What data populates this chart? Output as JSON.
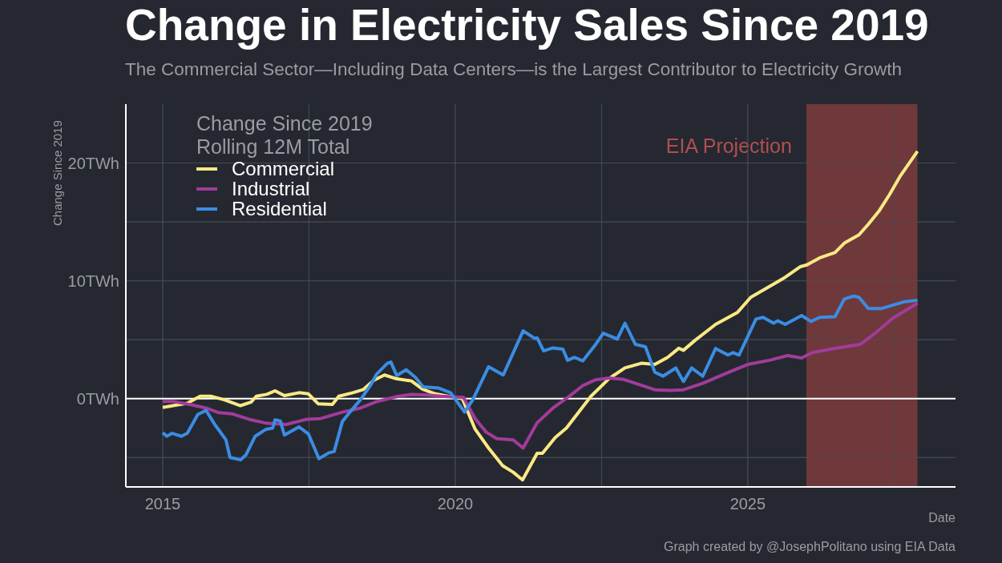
{
  "chart_data": {
    "type": "line",
    "title": "Change in Electricity Sales Since 2019",
    "subtitle": "The Commercial Sector—Including Data Centers—is the Largest Contributor to Electricity Growth",
    "xlabel": "Date",
    "ylabel": "Change Since 2019",
    "legend_title": "Change Since 2019\nRolling 12M Total",
    "legend": "top left",
    "grid": true,
    "xlim": [
      2014.37,
      2028.55
    ],
    "ylim": [
      -7.5,
      25
    ],
    "xticks": [
      2015,
      {
        "value": 2017.5,
        "label": null
      },
      2020,
      {
        "value": 2022.5,
        "label": null
      },
      2025,
      {
        "value": 2027.5,
        "label": null
      }
    ],
    "yticks": [
      {
        "value": -5,
        "label": null
      },
      {
        "value": 0,
        "label": "0TWh"
      },
      {
        "value": 5,
        "label": null
      },
      {
        "value": 10,
        "label": "10TWh"
      },
      {
        "value": 15,
        "label": null
      },
      {
        "value": 20,
        "label": "20TWh"
      }
    ],
    "ref_lines": [
      {
        "axis": "y",
        "value": 0,
        "color": "#ffffff"
      }
    ],
    "bands": [
      {
        "axis": "x",
        "from": 2026.0,
        "to": 2027.9,
        "label": "EIA Projection",
        "color": "#7d3b3c"
      }
    ],
    "annotations": [
      "Graph created by @JosephPolitano using EIA Data"
    ],
    "series": [
      {
        "name": "Commercial",
        "color": "#fbe984",
        "x": [
          2015.0,
          2015.42,
          2015.64,
          2015.82,
          2016.05,
          2016.33,
          2016.51,
          2016.6,
          2016.78,
          2016.92,
          2017.08,
          2017.33,
          2017.49,
          2017.66,
          2017.9,
          2018.01,
          2018.25,
          2018.43,
          2018.61,
          2018.79,
          2018.98,
          2019.25,
          2019.44,
          2019.66,
          2019.99,
          2020.12,
          2020.34,
          2020.57,
          2020.81,
          2020.99,
          2021.15,
          2021.4,
          2021.49,
          2021.71,
          2021.9,
          2022.32,
          2022.63,
          2022.9,
          2023.18,
          2023.41,
          2023.63,
          2023.82,
          2023.9,
          2024.1,
          2024.45,
          2024.82,
          2025.05,
          2025.47,
          2025.64,
          2025.9,
          2026.01,
          2026.23,
          2026.49,
          2026.65,
          2026.9,
          2027.06,
          2027.24,
          2027.42,
          2027.6,
          2027.9
        ],
        "values": [
          -0.75,
          -0.4,
          0.2,
          0.2,
          -0.1,
          -0.6,
          -0.3,
          0.2,
          0.36,
          0.66,
          0.25,
          0.5,
          0.4,
          -0.45,
          -0.5,
          0.2,
          0.5,
          0.77,
          1.56,
          2.0,
          1.7,
          1.5,
          0.8,
          0.4,
          0.1,
          0.0,
          -2.6,
          -4.2,
          -5.7,
          -6.25,
          -6.9,
          -4.65,
          -4.65,
          -3.3,
          -2.5,
          0.2,
          1.7,
          2.6,
          3.0,
          2.9,
          3.5,
          4.27,
          4.1,
          4.95,
          6.3,
          7.3,
          8.6,
          9.8,
          10.3,
          11.2,
          11.35,
          11.95,
          12.4,
          13.2,
          13.9,
          14.8,
          15.9,
          17.3,
          18.85,
          21.0
        ]
      },
      {
        "name": "Industrial",
        "color": "#a23b9b",
        "x": [
          2015.0,
          2015.19,
          2015.51,
          2015.74,
          2015.96,
          2016.19,
          2016.47,
          2016.78,
          2017.11,
          2017.47,
          2017.7,
          2018.07,
          2018.38,
          2018.66,
          2019.03,
          2019.25,
          2019.52,
          2019.75,
          2020.14,
          2020.34,
          2020.53,
          2020.71,
          2020.99,
          2021.16,
          2021.4,
          2021.67,
          2021.95,
          2022.18,
          2022.4,
          2022.63,
          2022.86,
          2023.08,
          2023.41,
          2023.68,
          2023.9,
          2024.23,
          2024.68,
          2025.0,
          2025.37,
          2025.68,
          2025.92,
          2026.1,
          2026.47,
          2026.92,
          2027.19,
          2027.47,
          2027.9
        ],
        "values": [
          -0.25,
          -0.25,
          -0.55,
          -0.8,
          -1.2,
          -1.3,
          -1.75,
          -2.1,
          -2.2,
          -1.75,
          -1.7,
          -1.15,
          -0.8,
          -0.25,
          0.2,
          0.35,
          0.3,
          0.2,
          0.1,
          -1.7,
          -2.85,
          -3.4,
          -3.5,
          -4.2,
          -2.05,
          -0.8,
          0.2,
          1.1,
          1.6,
          1.75,
          1.65,
          1.3,
          0.75,
          0.7,
          0.75,
          1.3,
          2.25,
          2.9,
          3.25,
          3.65,
          3.45,
          3.9,
          4.25,
          4.6,
          5.6,
          6.8,
          8.1
        ]
      },
      {
        "name": "Residential",
        "color": "#3a8de4",
        "x": [
          2015.0,
          2015.07,
          2015.16,
          2015.32,
          2015.42,
          2015.6,
          2015.74,
          2015.89,
          2016.08,
          2016.15,
          2016.33,
          2016.42,
          2016.58,
          2016.77,
          2016.88,
          2016.92,
          2017.01,
          2017.08,
          2017.33,
          2017.49,
          2017.67,
          2017.84,
          2017.93,
          2018.07,
          2018.2,
          2018.38,
          2018.56,
          2018.66,
          2018.84,
          2018.9,
          2019.0,
          2019.16,
          2019.32,
          2019.45,
          2019.71,
          2019.92,
          2020.16,
          2020.3,
          2020.57,
          2020.82,
          2021.16,
          2021.36,
          2021.4,
          2021.51,
          2021.67,
          2021.84,
          2021.92,
          2022.04,
          2022.18,
          2022.4,
          2022.53,
          2022.77,
          2022.9,
          2023.08,
          2023.25,
          2023.41,
          2023.55,
          2023.77,
          2023.9,
          2024.04,
          2024.23,
          2024.45,
          2024.66,
          2024.75,
          2024.85,
          2025.14,
          2025.26,
          2025.44,
          2025.51,
          2025.64,
          2025.92,
          2026.08,
          2026.23,
          2026.49,
          2026.65,
          2026.81,
          2026.9,
          2027.06,
          2027.29,
          2027.66,
          2027.9
        ],
        "values": [
          -2.9,
          -3.2,
          -2.95,
          -3.2,
          -2.95,
          -1.35,
          -1.0,
          -2.2,
          -3.5,
          -5.0,
          -5.2,
          -4.8,
          -3.2,
          -2.6,
          -2.5,
          -1.8,
          -1.9,
          -3.1,
          -2.4,
          -3.0,
          -5.1,
          -4.6,
          -4.5,
          -1.95,
          -1.15,
          -0.1,
          1.2,
          2.1,
          3.0,
          3.1,
          1.95,
          2.45,
          1.8,
          1.0,
          0.9,
          0.5,
          -1.15,
          -0.1,
          2.7,
          2.0,
          5.75,
          5.1,
          5.15,
          4.05,
          4.3,
          4.2,
          3.25,
          3.5,
          3.2,
          4.6,
          5.55,
          5.05,
          6.4,
          4.6,
          4.4,
          2.25,
          1.9,
          2.6,
          1.45,
          2.6,
          1.9,
          4.25,
          3.7,
          3.9,
          3.7,
          6.75,
          6.9,
          6.4,
          6.6,
          6.3,
          7.05,
          6.55,
          6.9,
          6.95,
          8.45,
          8.7,
          8.6,
          7.65,
          7.65,
          8.2,
          8.35
        ]
      }
    ]
  }
}
